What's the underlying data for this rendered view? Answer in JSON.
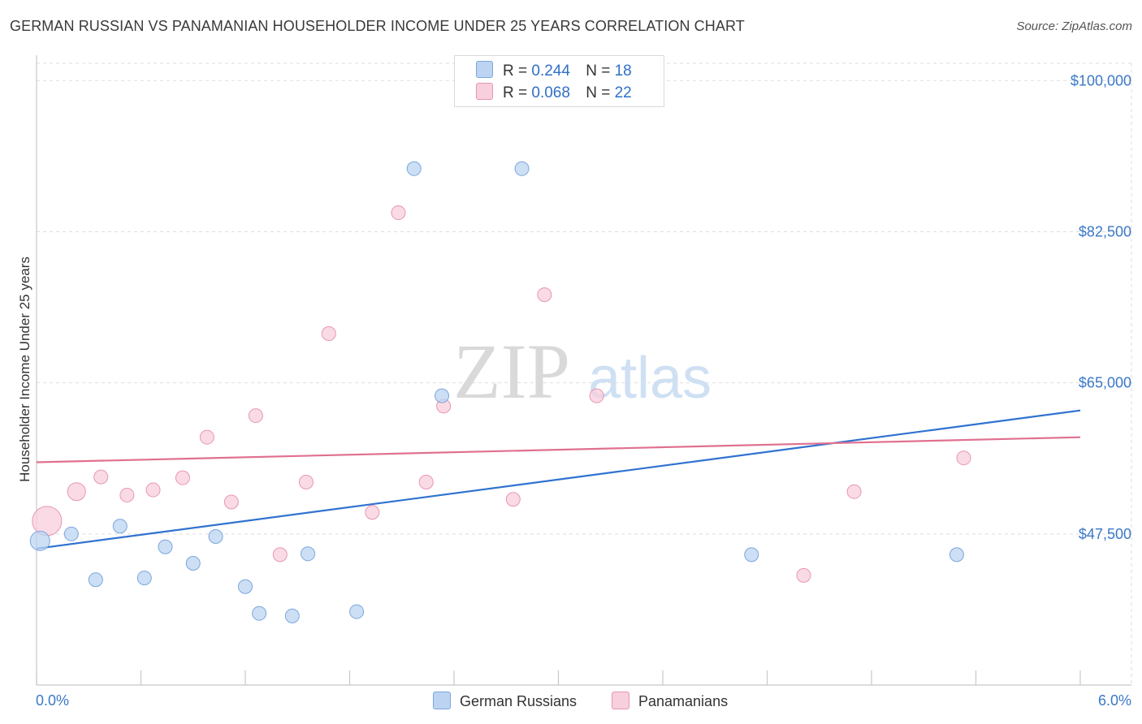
{
  "header": {
    "title": "GERMAN RUSSIAN VS PANAMANIAN HOUSEHOLDER INCOME UNDER 25 YEARS CORRELATION CHART",
    "source": "Source: ZipAtlas.com"
  },
  "watermark": {
    "zip": "ZIP",
    "atlas": "atlas"
  },
  "legend_top": {
    "series1": {
      "r_label": "R =",
      "r_value": "0.244",
      "n_label": "N =",
      "n_value": "18"
    },
    "series2": {
      "r_label": "R =",
      "r_value": "0.068",
      "n_label": "N =",
      "n_value": "22"
    }
  },
  "legend_bottom": {
    "series1": "German Russians",
    "series2": "Panamanians"
  },
  "colors": {
    "blue_fill": "#bcd4f2",
    "blue_stroke": "#7aa6dd",
    "blue_line": "#2f72d0",
    "pink_fill": "#f8cfdc",
    "pink_stroke": "#e896b0",
    "pink_line": "#e0708f",
    "axis_text": "#3b78c8",
    "grid": "#dddddd"
  },
  "chart_data": {
    "type": "scatter",
    "title": "GERMAN RUSSIAN VS PANAMANIAN HOUSEHOLDER INCOME UNDER 25 YEARS CORRELATION CHART",
    "xlabel": "",
    "ylabel": "Householder Income Under 25 years",
    "xlim": [
      0.0,
      6.0
    ],
    "ylim": [
      30000,
      102000
    ],
    "x_tick_labels": [
      "0.0%",
      "6.0%"
    ],
    "y_ticks": [
      {
        "value": 47500,
        "label": "$47,500"
      },
      {
        "value": 65000,
        "label": "$65,000"
      },
      {
        "value": 82500,
        "label": "$82,500"
      },
      {
        "value": 100000,
        "label": "$100,000"
      }
    ],
    "grid": true,
    "series": [
      {
        "name": "German Russians",
        "r": 0.244,
        "n": 18,
        "points": [
          {
            "x": 0.02,
            "y": 46700,
            "size": "large"
          },
          {
            "x": 0.2,
            "y": 47500
          },
          {
            "x": 0.34,
            "y": 42200
          },
          {
            "x": 0.48,
            "y": 48400
          },
          {
            "x": 0.62,
            "y": 42400
          },
          {
            "x": 0.74,
            "y": 46000
          },
          {
            "x": 0.9,
            "y": 44100
          },
          {
            "x": 1.03,
            "y": 47200
          },
          {
            "x": 1.2,
            "y": 41400
          },
          {
            "x": 1.28,
            "y": 38300
          },
          {
            "x": 1.47,
            "y": 38000
          },
          {
            "x": 1.56,
            "y": 45200
          },
          {
            "x": 1.84,
            "y": 38500
          },
          {
            "x": 2.17,
            "y": 89800
          },
          {
            "x": 2.33,
            "y": 63500
          },
          {
            "x": 2.79,
            "y": 89800
          },
          {
            "x": 4.11,
            "y": 45100
          },
          {
            "x": 5.29,
            "y": 45100
          }
        ],
        "trend": {
          "x": [
            0.0,
            6.0
          ],
          "y": [
            45800,
            61800
          ]
        }
      },
      {
        "name": "Panamanians",
        "r": 0.068,
        "n": 22,
        "points": [
          {
            "x": 0.06,
            "y": 49000,
            "size": "xlarge"
          },
          {
            "x": 0.23,
            "y": 52400,
            "size": "medium"
          },
          {
            "x": 0.37,
            "y": 54100
          },
          {
            "x": 0.52,
            "y": 52000
          },
          {
            "x": 0.67,
            "y": 52600
          },
          {
            "x": 0.84,
            "y": 54000
          },
          {
            "x": 0.98,
            "y": 58700
          },
          {
            "x": 1.12,
            "y": 51200
          },
          {
            "x": 1.26,
            "y": 61200
          },
          {
            "x": 1.4,
            "y": 45100
          },
          {
            "x": 1.55,
            "y": 53500
          },
          {
            "x": 1.68,
            "y": 70700
          },
          {
            "x": 1.93,
            "y": 50000
          },
          {
            "x": 2.08,
            "y": 84700
          },
          {
            "x": 2.24,
            "y": 53500
          },
          {
            "x": 2.34,
            "y": 62300
          },
          {
            "x": 2.74,
            "y": 51500
          },
          {
            "x": 2.92,
            "y": 75200
          },
          {
            "x": 3.22,
            "y": 63500
          },
          {
            "x": 4.41,
            "y": 42700
          },
          {
            "x": 4.7,
            "y": 52400
          },
          {
            "x": 5.33,
            "y": 56300
          }
        ],
        "trend": {
          "x": [
            0.0,
            6.0
          ],
          "y": [
            55800,
            58700
          ]
        }
      }
    ]
  }
}
